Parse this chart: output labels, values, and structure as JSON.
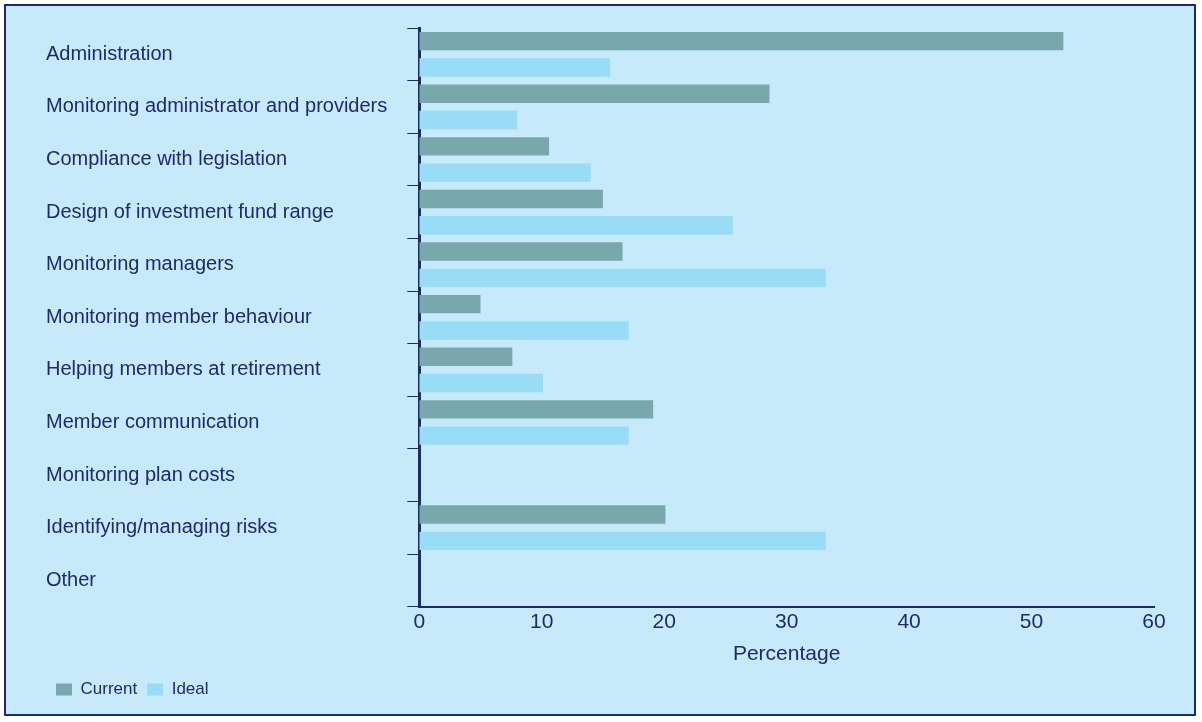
{
  "chart_data": {
    "type": "bar",
    "orientation": "horizontal",
    "xlabel": "Percentage",
    "categories": [
      "Administration",
      "Monitoring administrator and providers",
      "Compliance with legislation",
      "Design of investment fund range",
      "Monitoring managers",
      "Monitoring member behaviour",
      "Helping members at retirement",
      "Member communication",
      "Monitoring plan costs",
      "Identifying/managing risks",
      "Other"
    ],
    "series": [
      {
        "name": "Current",
        "color": "#78a8ac",
        "values": [
          52.6,
          28.6,
          10.6,
          15,
          16.6,
          5,
          7.6,
          19.1,
          0,
          20.1,
          0
        ]
      },
      {
        "name": "Ideal",
        "color": "#99dcf5",
        "values": [
          15.6,
          8,
          14,
          25.6,
          33.2,
          17.1,
          10.1,
          17.1,
          0,
          33.2,
          0
        ]
      }
    ],
    "xlim": [
      0,
      60
    ],
    "xticks": [
      0,
      10,
      20,
      30,
      40,
      50,
      60
    ],
    "grid": false,
    "legend": "bottom left"
  }
}
